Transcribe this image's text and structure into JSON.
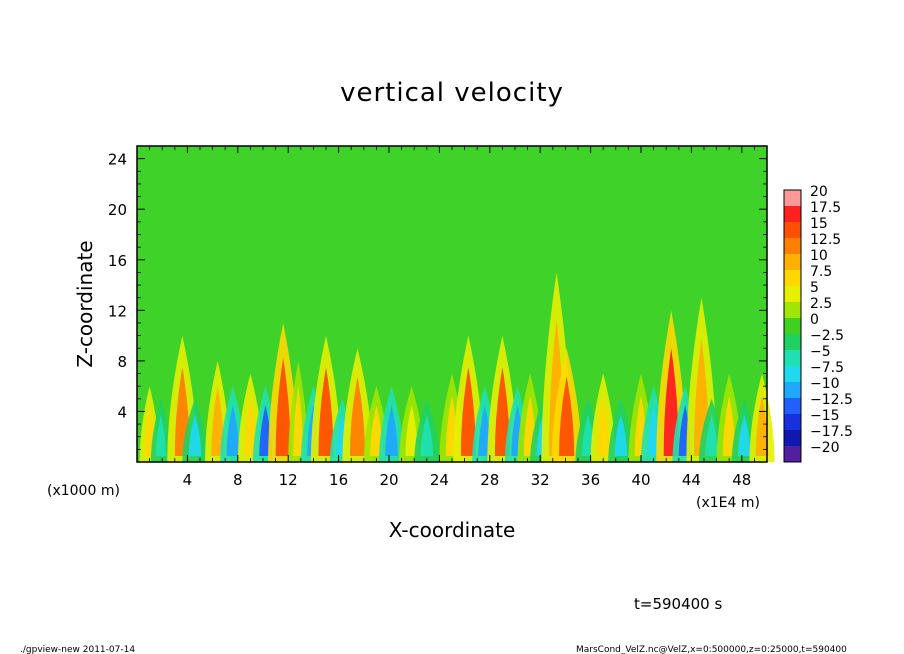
{
  "chart_data": {
    "type": "heatmap",
    "title": "vertical velocity",
    "xlabel": "X-coordinate",
    "ylabel": "Z-coordinate",
    "x_unit_left": "(x1000 m)",
    "x_unit_right": "(x1E4 m)",
    "x_ticks": [
      "4",
      "8",
      "12",
      "16",
      "20",
      "24",
      "28",
      "32",
      "36",
      "40",
      "44",
      "48"
    ],
    "y_ticks": [
      "4",
      "8",
      "12",
      "16",
      "20",
      "24"
    ],
    "xlim": [
      0,
      50
    ],
    "ylim": [
      0,
      25
    ],
    "colorbar_labels": [
      "20",
      "17.5",
      "15",
      "12.5",
      "10",
      "7.5",
      "5",
      "2.5",
      "0",
      "−2.5",
      "−5",
      "−7.5",
      "−10",
      "−12.5",
      "−15",
      "−17.5",
      "−20"
    ],
    "colorbar_colors": [
      "#ff9999",
      "#ff2020",
      "#ff5000",
      "#ff8000",
      "#ffb000",
      "#ffd800",
      "#e6f000",
      "#a0e600",
      "#40d020",
      "#20d060",
      "#20e0b0",
      "#20d8f0",
      "#20a8ff",
      "#2060ff",
      "#1830e0",
      "#1018b0",
      "#5020a0"
    ],
    "colorbar_range": [
      -20,
      20
    ],
    "time_label": "t=590400 s",
    "features": [
      {
        "x": 1.0,
        "w": 0.2,
        "a": 8,
        "top": 6
      },
      {
        "x": 1.9,
        "w": 0.2,
        "a": -5,
        "top": 5
      },
      {
        "x": 3.6,
        "w": 0.3,
        "a": 11,
        "top": 10
      },
      {
        "x": 4.6,
        "w": 0.25,
        "a": -6,
        "top": 5
      },
      {
        "x": 6.4,
        "w": 0.25,
        "a": 9,
        "top": 8
      },
      {
        "x": 7.6,
        "w": 0.25,
        "a": -10,
        "top": 6
      },
      {
        "x": 9.0,
        "w": 0.25,
        "a": 8,
        "top": 7
      },
      {
        "x": 10.2,
        "w": 0.25,
        "a": -11,
        "top": 6
      },
      {
        "x": 11.6,
        "w": 0.3,
        "a": 14,
        "top": 11
      },
      {
        "x": 12.8,
        "w": 0.2,
        "a": 6,
        "top": 8
      },
      {
        "x": 14.0,
        "w": 0.25,
        "a": -9,
        "top": 6
      },
      {
        "x": 15.0,
        "w": 0.3,
        "a": 13,
        "top": 10
      },
      {
        "x": 16.3,
        "w": 0.25,
        "a": -8,
        "top": 5
      },
      {
        "x": 17.5,
        "w": 0.3,
        "a": 12,
        "top": 9
      },
      {
        "x": 19.0,
        "w": 0.25,
        "a": 7,
        "top": 6
      },
      {
        "x": 20.2,
        "w": 0.25,
        "a": -9,
        "top": 6
      },
      {
        "x": 21.8,
        "w": 0.25,
        "a": 5,
        "top": 6
      },
      {
        "x": 23.0,
        "w": 0.25,
        "a": -4,
        "top": 5
      },
      {
        "x": 25.0,
        "w": 0.25,
        "a": 6,
        "top": 7
      },
      {
        "x": 26.3,
        "w": 0.3,
        "a": 13,
        "top": 10
      },
      {
        "x": 27.6,
        "w": 0.25,
        "a": -10,
        "top": 6
      },
      {
        "x": 29.0,
        "w": 0.3,
        "a": 13,
        "top": 10
      },
      {
        "x": 30.2,
        "w": 0.25,
        "a": -9,
        "top": 6
      },
      {
        "x": 31.2,
        "w": 0.25,
        "a": 7,
        "top": 7
      },
      {
        "x": 32.2,
        "w": 0.25,
        "a": -6,
        "top": 5
      },
      {
        "x": 33.3,
        "w": 0.3,
        "a": 9,
        "top": 15
      },
      {
        "x": 34.1,
        "w": 0.3,
        "a": 14,
        "top": 9
      },
      {
        "x": 35.8,
        "w": 0.25,
        "a": -5,
        "top": 5
      },
      {
        "x": 37.0,
        "w": 0.25,
        "a": 8,
        "top": 7
      },
      {
        "x": 38.4,
        "w": 0.25,
        "a": -6,
        "top": 5
      },
      {
        "x": 40.0,
        "w": 0.25,
        "a": 6,
        "top": 7
      },
      {
        "x": 41.0,
        "w": 0.25,
        "a": -8,
        "top": 6
      },
      {
        "x": 42.4,
        "w": 0.3,
        "a": 16,
        "top": 12
      },
      {
        "x": 43.5,
        "w": 0.25,
        "a": -11,
        "top": 6
      },
      {
        "x": 44.8,
        "w": 0.3,
        "a": 9,
        "top": 13
      },
      {
        "x": 45.6,
        "w": 0.25,
        "a": -5,
        "top": 5
      },
      {
        "x": 47.0,
        "w": 0.25,
        "a": 6,
        "top": 7
      },
      {
        "x": 48.2,
        "w": 0.25,
        "a": -6,
        "top": 5
      },
      {
        "x": 49.6,
        "w": 0.25,
        "a": 10,
        "top": 7
      }
    ]
  },
  "footer": {
    "left": "./gpview-new   2011-07-14",
    "right": "MarsCond_VelZ.nc@VelZ,x=0:500000,z=0:25000,t=590400"
  }
}
